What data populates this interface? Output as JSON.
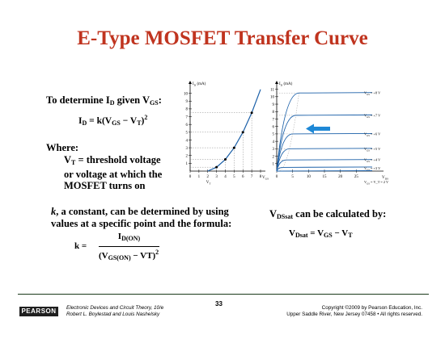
{
  "slide": {
    "title": "E-Type MOSFET Transfer Curve",
    "determine": {
      "pre": "To determine I",
      "sub": "D",
      "mid": " given V",
      "sub2": "GS",
      "post": ":"
    },
    "formula1": {
      "lhs": "I",
      "lhs_sub": "D",
      "eq": " = k(V",
      "gs_sub": "GS",
      "minus": " − V",
      "t_sub": "T",
      "close": ")",
      "sup": "2"
    },
    "where_label": "Where:",
    "vt_def": {
      "v": "V",
      "sub": "T",
      "rest": " = threshold voltage"
    },
    "vt_def_line2": "or voltage at which the",
    "vt_def_line3": "MOSFET turns on",
    "k_text_italic": "k",
    "k_text_line1": ", a constant, can be determined by using",
    "k_text_line2": "values at a specific point and the formula:",
    "k_formula": {
      "lhs": "k =",
      "num": "I",
      "num_sub": "D(ON)",
      "den_open": "(V",
      "den_sub": "GS(ON)",
      "den_mid": " − VT)",
      "den_sup": "2"
    },
    "vdsat_text": {
      "v": "V",
      "sub": "DSsat",
      "rest": "  can be calculated by:"
    },
    "vdsat_formula": {
      "v": "V",
      "sub": "Dsat",
      "eq": " = V",
      "sub2": "GS",
      "mid": " − V",
      "sub3": "T"
    }
  },
  "footer": {
    "publisher": "PEARSON",
    "book_line1": "Electronic Devices and Circuit Theory, 10/e",
    "book_line2": "Robert L. Boylestad and Louis Nashelsky",
    "page_number": "33",
    "copyright_line1": "Copyright ©2009 by Pearson Education, Inc.",
    "copyright_line2": "Upper Saddle River, New Jersey 07458 • All rights reserved."
  },
  "chart_data": [
    {
      "type": "line",
      "ylabel": "I_D (mA)",
      "xlabel": "V_GS",
      "x_marker_label": "V_T",
      "x_ticks": [
        "0",
        "1",
        "2",
        "3",
        "4",
        "5",
        "6",
        "7",
        "8"
      ],
      "y_ticks": [
        "1",
        "2",
        "3",
        "4",
        "5",
        "6",
        "7",
        "8",
        "9",
        "10"
      ],
      "xlim": [
        0,
        8
      ],
      "ylim": [
        0,
        11
      ],
      "grid": false,
      "series": [
        {
          "x": [
            2,
            3,
            4,
            5,
            6,
            7,
            8
          ],
          "y": [
            0,
            0.5,
            1.5,
            3,
            5,
            7.5,
            10.5
          ],
          "markers": [
            3,
            4,
            5,
            6,
            7
          ]
        }
      ]
    },
    {
      "type": "line",
      "ylabel": "I_D (mA)",
      "xlabel": "V_DS",
      "x_ticks": [
        "0",
        "5",
        "10",
        "15",
        "20",
        "25"
      ],
      "y_ticks": [
        "1",
        "2",
        "3",
        "4",
        "5",
        "6",
        "7",
        "8",
        "9",
        "10",
        "11"
      ],
      "xlim": [
        0,
        30
      ],
      "ylim": [
        0,
        11.5
      ],
      "grid": false,
      "saturation_locus_label": "V_DSsat = V_P = 2 V",
      "series": [
        {
          "name": "V_GS = +8 V",
          "saturation": 10.5,
          "vdsat": 6
        },
        {
          "name": "V_GS = +7 V",
          "saturation": 7.5,
          "vdsat": 5
        },
        {
          "name": "V_GS = +6 V",
          "saturation": 5,
          "vdsat": 4
        },
        {
          "name": "V_GS = +5 V",
          "saturation": 3,
          "vdsat": 3
        },
        {
          "name": "V_GS = +4 V",
          "saturation": 1.5,
          "vdsat": 2
        },
        {
          "name": "V_GS = +3 V",
          "saturation": 0.5,
          "vdsat": 1
        },
        {
          "name": "V_GS = V_T = 2 V",
          "saturation": 0,
          "vdsat": 0
        }
      ],
      "annotations": [
        "arrow pointing left between curves"
      ]
    }
  ]
}
